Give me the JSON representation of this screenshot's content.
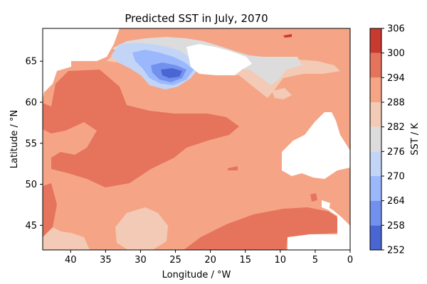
{
  "chart_data": {
    "type": "heatmap",
    "title": "Predicted SST in July, 2070",
    "xlabel": "Longitude / °W",
    "ylabel": "Latitude / °N",
    "xlim": [
      44,
      0
    ],
    "ylim": [
      42,
      69
    ],
    "x_ticks": [
      40,
      35,
      30,
      25,
      20,
      15,
      10,
      5,
      0
    ],
    "y_ticks": [
      45,
      50,
      55,
      60,
      65
    ],
    "colorbar": {
      "label": "SST / K",
      "levels": [
        252,
        258,
        264,
        270,
        276,
        282,
        288,
        294,
        300,
        306
      ],
      "colors": [
        "#4a66d3",
        "#7291ef",
        "#9bb8fd",
        "#c3d5f6",
        "#dddcdc",
        "#f2cab5",
        "#f5a586",
        "#e6735c",
        "#c83a30"
      ]
    },
    "grid": false
  }
}
